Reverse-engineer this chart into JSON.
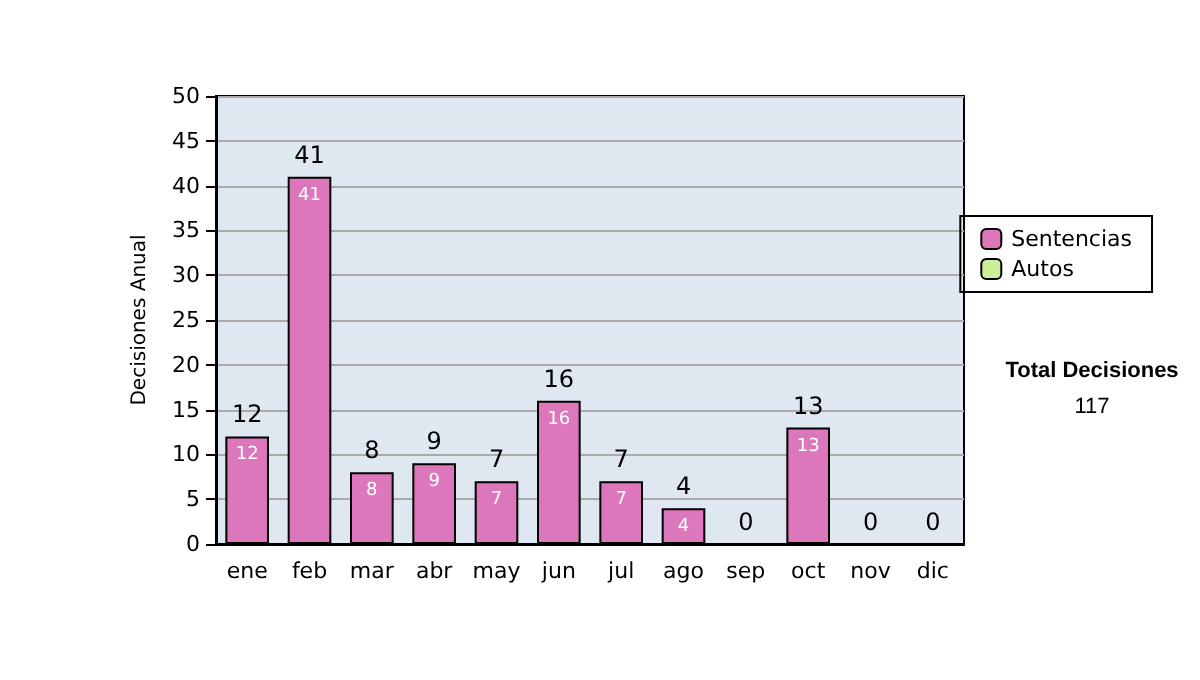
{
  "chart_data": {
    "type": "bar",
    "ylabel": "Decisiones Anual",
    "categories": [
      "ene",
      "feb",
      "mar",
      "abr",
      "may",
      "jun",
      "jul",
      "ago",
      "sep",
      "oct",
      "nov",
      "dic"
    ],
    "series": [
      {
        "name": "Sentencias",
        "color": "#dd77bb",
        "values": [
          12,
          41,
          8,
          9,
          7,
          16,
          7,
          4,
          0,
          13,
          0,
          0
        ],
        "value_labels": [
          "12",
          "41",
          "8",
          "9",
          "7",
          "16",
          "7",
          "4",
          null,
          "13",
          null,
          null
        ]
      },
      {
        "name": "Autos",
        "color": "#ccee99",
        "values": [
          0,
          0,
          0,
          0,
          0,
          0,
          0,
          0,
          0,
          0,
          0,
          0
        ]
      }
    ],
    "stacked": true,
    "totals": [
      "12",
      "41",
      "8",
      "9",
      "7",
      "16",
      "7",
      "4",
      "0",
      "13",
      "0",
      "0"
    ],
    "ylim": [
      0,
      50
    ],
    "yticks": [
      0,
      5,
      10,
      15,
      20,
      25,
      30,
      35,
      40,
      45,
      50
    ],
    "grid": "y",
    "legend": "right",
    "annotations": [
      "Total Decisiones",
      "117"
    ]
  }
}
